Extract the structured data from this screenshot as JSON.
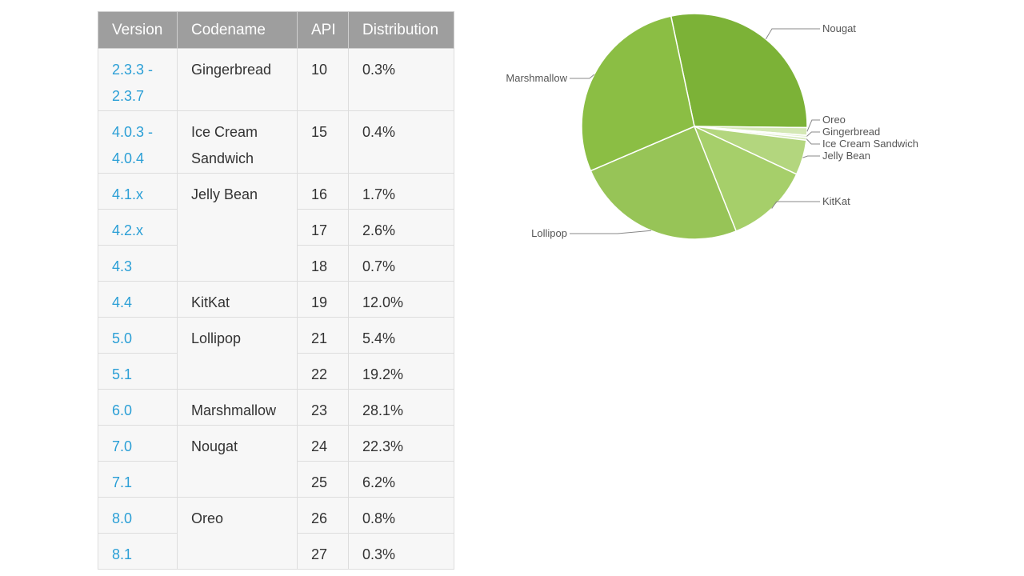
{
  "table": {
    "headers": [
      "Version",
      "Codename",
      "API",
      "Distribution"
    ],
    "rows": [
      {
        "version": "2.3.3 -\n2.3.7",
        "codename": "Gingerbread",
        "api": "10",
        "dist": "0.3%"
      },
      {
        "version": "4.0.3 -\n4.0.4",
        "codename": "Ice Cream\nSandwich",
        "api": "15",
        "dist": "0.4%"
      },
      {
        "version": "4.1.x",
        "codename": "Jelly Bean",
        "api": "16",
        "dist": "1.7%"
      },
      {
        "version": "4.2.x",
        "codename": null,
        "api": "17",
        "dist": "2.6%"
      },
      {
        "version": "4.3",
        "codename": null,
        "api": "18",
        "dist": "0.7%"
      },
      {
        "version": "4.4",
        "codename": "KitKat",
        "api": "19",
        "dist": "12.0%"
      },
      {
        "version": "5.0",
        "codename": "Lollipop",
        "api": "21",
        "dist": "5.4%"
      },
      {
        "version": "5.1",
        "codename": null,
        "api": "22",
        "dist": "19.2%"
      },
      {
        "version": "6.0",
        "codename": "Marshmallow",
        "api": "23",
        "dist": "28.1%"
      },
      {
        "version": "7.0",
        "codename": "Nougat",
        "api": "24",
        "dist": "22.3%"
      },
      {
        "version": "7.1",
        "codename": null,
        "api": "25",
        "dist": "6.2%"
      },
      {
        "version": "8.0",
        "codename": "Oreo",
        "api": "26",
        "dist": "0.8%"
      },
      {
        "version": "8.1",
        "codename": null,
        "api": "27",
        "dist": "0.3%"
      }
    ]
  },
  "chart_data": {
    "type": "pie",
    "categories": [
      "Nougat",
      "Oreo",
      "Gingerbread",
      "Ice Cream Sandwich",
      "Jelly Bean",
      "KitKat",
      "Lollipop",
      "Marshmallow"
    ],
    "values": [
      28.5,
      1.1,
      0.3,
      0.4,
      5.0,
      12.0,
      24.6,
      28.1
    ],
    "colors": [
      "#7cb237",
      "#d4e8b5",
      "#e3f0cf",
      "#d8eabf",
      "#b3d67e",
      "#a6cf6a",
      "#97c457",
      "#8bbe44"
    ],
    "legend_position": "callouts"
  }
}
